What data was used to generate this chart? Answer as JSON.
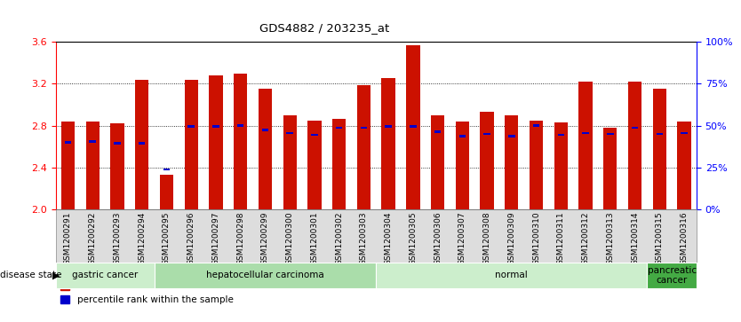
{
  "title": "GDS4882 / 203235_at",
  "samples": [
    "GSM1200291",
    "GSM1200292",
    "GSM1200293",
    "GSM1200294",
    "GSM1200295",
    "GSM1200296",
    "GSM1200297",
    "GSM1200298",
    "GSM1200299",
    "GSM1200300",
    "GSM1200301",
    "GSM1200302",
    "GSM1200303",
    "GSM1200304",
    "GSM1200305",
    "GSM1200306",
    "GSM1200307",
    "GSM1200308",
    "GSM1200309",
    "GSM1200310",
    "GSM1200311",
    "GSM1200312",
    "GSM1200313",
    "GSM1200314",
    "GSM1200315",
    "GSM1200316"
  ],
  "transformed_count": [
    2.84,
    2.84,
    2.82,
    3.24,
    2.33,
    3.24,
    3.28,
    3.3,
    3.15,
    2.9,
    2.85,
    2.86,
    3.19,
    3.25,
    3.57,
    2.9,
    2.84,
    2.93,
    2.9,
    2.85,
    2.83,
    3.22,
    2.78,
    3.22,
    3.15,
    2.84
  ],
  "percentile_rank": [
    2.64,
    2.65,
    2.63,
    2.63,
    2.38,
    2.79,
    2.79,
    2.8,
    2.76,
    2.73,
    2.71,
    2.78,
    2.78,
    2.79,
    2.79,
    2.74,
    2.7,
    2.72,
    2.7,
    2.8,
    2.71,
    2.73,
    2.72,
    2.78,
    2.72,
    2.73
  ],
  "disease_groups": [
    {
      "label": "gastric cancer",
      "start": 0,
      "end": 4,
      "color": "#cceecc"
    },
    {
      "label": "hepatocellular carcinoma",
      "start": 4,
      "end": 13,
      "color": "#aaddaa"
    },
    {
      "label": "normal",
      "start": 13,
      "end": 24,
      "color": "#cceecc"
    },
    {
      "label": "pancreatic\ncancer",
      "start": 24,
      "end": 26,
      "color": "#44aa44"
    }
  ],
  "ylim": [
    2.0,
    3.6
  ],
  "yticks": [
    2.0,
    2.4,
    2.8,
    3.2,
    3.6
  ],
  "right_ytick_pcts": [
    0,
    25,
    50,
    75,
    100
  ],
  "bar_color": "#cc1100",
  "percentile_color": "#0000cc",
  "bg_color": "#ffffff",
  "bar_width": 0.55,
  "xtick_bg_color": "#dddddd",
  "disease_label_fontsize": 7.5,
  "ytick_fontsize": 8,
  "xtick_fontsize": 6.5
}
